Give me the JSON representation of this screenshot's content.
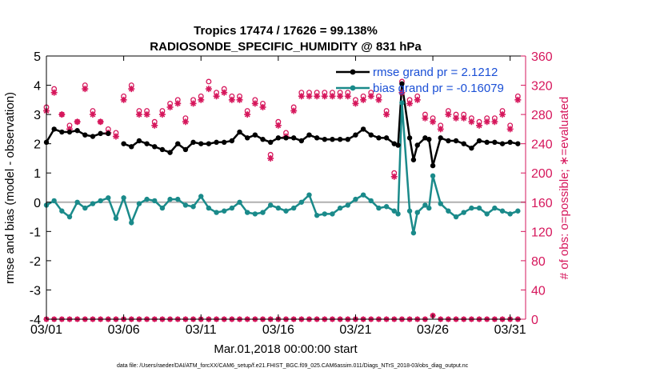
{
  "chart_data": {
    "type": "line",
    "title_line1": "Tropics 17474 / 17626 = 99.138%",
    "title_line2": "RADIOSONDE_SPECIFIC_HUMIDITY @ 831 hPa",
    "xlabel": "Mar.01,2018 00:00:00 start",
    "ylabel_left": "rmse and bias (model - observation)",
    "ylabel_right": "# of obs: o=possible; ∗=evaluated",
    "footer": "data file: /Users/raeder/DAI/ATM_forcXX/CAM6_setup/f.e21.FHIST_BGC.f09_025.CAM6assim.011/Diags_NTrS_2018-03/obs_diag_output.nc",
    "xlim": [
      0,
      62
    ],
    "ylim_left": [
      -4,
      5
    ],
    "ylim_right": [
      0,
      360
    ],
    "x_ticks": [
      {
        "x": 0,
        "label": "03/01"
      },
      {
        "x": 10,
        "label": "03/06"
      },
      {
        "x": 20,
        "label": "03/11"
      },
      {
        "x": 30,
        "label": "03/16"
      },
      {
        "x": 40,
        "label": "03/21"
      },
      {
        "x": 50,
        "label": "03/26"
      },
      {
        "x": 60,
        "label": "03/31"
      }
    ],
    "y_ticks_left": [
      -4,
      -3,
      -2,
      -1,
      0,
      1,
      2,
      3,
      4,
      5
    ],
    "y_ticks_right": [
      0,
      40,
      80,
      120,
      160,
      200,
      240,
      280,
      320,
      360
    ],
    "colors": {
      "rmse": "#000000",
      "bias": "#1a8a8a",
      "obs": "#d6175c",
      "zero_line": "#b0b0b0",
      "legend_text": "#1a4fd6"
    },
    "legend": [
      {
        "series": "rmse",
        "label": "rmse grand pr = 2.1212"
      },
      {
        "series": "bias",
        "label": "bias grand pr = -0.16079"
      }
    ],
    "series": [
      {
        "name": "rmse",
        "x": [
          0,
          1,
          2,
          3,
          4,
          5,
          6,
          7,
          8,
          9,
          10,
          11,
          12,
          13,
          14,
          15,
          16,
          17,
          18,
          19,
          20,
          21,
          22,
          23,
          24,
          25,
          26,
          27,
          28,
          29,
          30,
          31,
          32,
          33,
          34,
          35,
          36,
          37,
          38,
          39,
          40,
          41,
          42,
          43,
          44,
          45,
          45.5,
          46,
          47,
          47.5,
          48,
          49,
          49.5,
          50,
          51,
          52,
          53,
          54,
          55,
          56,
          57,
          58,
          59,
          60,
          61
        ],
        "y": [
          2.05,
          2.5,
          2.4,
          2.4,
          2.45,
          2.3,
          2.25,
          2.35,
          2.35,
          null,
          2.0,
          1.9,
          2.1,
          2.0,
          1.9,
          1.8,
          1.7,
          2.0,
          1.8,
          2.05,
          2.0,
          2.0,
          2.05,
          2.05,
          2.1,
          2.4,
          2.2,
          2.3,
          2.15,
          2.05,
          2.2,
          2.2,
          2.2,
          2.1,
          2.3,
          2.2,
          2.15,
          2.15,
          2.15,
          2.15,
          2.3,
          2.5,
          2.3,
          2.2,
          2.2,
          2.0,
          1.95,
          4.05,
          2.2,
          1.45,
          1.95,
          2.2,
          2.15,
          1.25,
          2.2,
          2.1,
          2.1,
          2.0,
          1.85,
          2.1,
          2.05,
          2.05,
          2.0,
          2.05,
          2.0
        ]
      },
      {
        "name": "bias",
        "x": [
          0,
          1,
          2,
          3,
          4,
          5,
          6,
          7,
          8,
          9,
          10,
          11,
          12,
          13,
          14,
          15,
          16,
          17,
          18,
          19,
          20,
          21,
          22,
          23,
          24,
          25,
          26,
          27,
          28,
          29,
          30,
          31,
          32,
          33,
          34,
          35,
          36,
          37,
          38,
          39,
          40,
          41,
          42,
          43,
          44,
          45,
          45.5,
          46,
          47,
          47.5,
          48,
          49,
          49.5,
          50,
          51,
          52,
          53,
          54,
          55,
          56,
          57,
          58,
          59,
          60,
          61
        ],
        "y": [
          -0.1,
          0.05,
          -0.3,
          -0.5,
          0.0,
          -0.2,
          -0.05,
          0.05,
          0.15,
          -0.55,
          0.15,
          -0.7,
          -0.05,
          0.1,
          0.05,
          -0.2,
          0.1,
          0.1,
          -0.1,
          -0.15,
          0.2,
          -0.2,
          -0.35,
          -0.3,
          -0.2,
          0.0,
          -0.35,
          -0.4,
          -0.35,
          -0.1,
          -0.2,
          -0.3,
          -0.2,
          0.0,
          0.25,
          -0.45,
          -0.4,
          -0.4,
          -0.2,
          -0.1,
          0.1,
          0.25,
          0.05,
          -0.2,
          -0.15,
          -0.3,
          -0.4,
          3.4,
          -0.3,
          -1.05,
          -0.35,
          -0.1,
          -0.2,
          0.9,
          -0.05,
          -0.3,
          -0.5,
          -0.35,
          -0.2,
          -0.2,
          -0.4,
          -0.2,
          -0.3,
          -0.4,
          -0.3
        ]
      },
      {
        "name": "obs_evaluated",
        "x": [
          0,
          1,
          2,
          3,
          4,
          5,
          6,
          7,
          8,
          9,
          10,
          11,
          12,
          13,
          14,
          15,
          16,
          17,
          18,
          19,
          20,
          21,
          22,
          23,
          24,
          25,
          26,
          27,
          28,
          29,
          30,
          31,
          32,
          33,
          34,
          35,
          36,
          37,
          38,
          39,
          40,
          41,
          42,
          43,
          44,
          45,
          46,
          47,
          48,
          49,
          50,
          51,
          52,
          53,
          54,
          55,
          56,
          57,
          58,
          59,
          60,
          61
        ],
        "y": [
          285,
          310,
          280,
          260,
          270,
          315,
          280,
          270,
          255,
          250,
          300,
          315,
          280,
          280,
          265,
          280,
          290,
          295,
          270,
          295,
          300,
          315,
          305,
          310,
          300,
          300,
          280,
          295,
          290,
          220,
          265,
          250,
          285,
          305,
          305,
          305,
          305,
          305,
          305,
          305,
          295,
          300,
          305,
          300,
          280,
          195,
          310,
          295,
          300,
          275,
          270,
          260,
          280,
          275,
          275,
          270,
          265,
          270,
          270,
          280,
          260,
          300
        ]
      },
      {
        "name": "obs_possible",
        "x": [
          0,
          1,
          2,
          3,
          4,
          5,
          6,
          7,
          8,
          9,
          10,
          11,
          12,
          13,
          14,
          15,
          16,
          17,
          18,
          19,
          20,
          21,
          22,
          23,
          24,
          25,
          26,
          27,
          28,
          29,
          30,
          31,
          32,
          33,
          34,
          35,
          36,
          37,
          38,
          39,
          40,
          41,
          42,
          43,
          44,
          45,
          46,
          47,
          48,
          49,
          50,
          51,
          52,
          53,
          54,
          55,
          56,
          57,
          58,
          59,
          60,
          61
        ],
        "y": [
          290,
          315,
          280,
          265,
          270,
          320,
          285,
          270,
          260,
          255,
          305,
          320,
          285,
          285,
          270,
          285,
          295,
          300,
          275,
          300,
          305,
          325,
          310,
          315,
          305,
          305,
          285,
          300,
          295,
          225,
          270,
          255,
          290,
          310,
          310,
          310,
          310,
          310,
          310,
          310,
          300,
          305,
          310,
          305,
          285,
          200,
          325,
          300,
          305,
          280,
          275,
          265,
          285,
          280,
          280,
          275,
          270,
          275,
          275,
          285,
          265,
          305
        ]
      },
      {
        "name": "obs_bottom",
        "x": [
          0,
          1,
          2,
          3,
          4,
          5,
          6,
          7,
          8,
          9,
          10,
          11,
          12,
          13,
          14,
          15,
          16,
          17,
          18,
          19,
          20,
          21,
          22,
          23,
          24,
          25,
          26,
          27,
          28,
          29,
          30,
          31,
          32,
          33,
          34,
          35,
          36,
          37,
          38,
          39,
          40,
          41,
          42,
          43,
          44,
          45,
          46,
          47,
          48,
          49,
          50,
          51,
          52,
          53,
          54,
          55,
          56,
          57,
          58,
          59,
          60,
          61
        ],
        "y": [
          0,
          0,
          0,
          0,
          0,
          0,
          0,
          0,
          0,
          0,
          0,
          0,
          0,
          0,
          0,
          0,
          0,
          0,
          0,
          0,
          0,
          0,
          0,
          0,
          0,
          0,
          0,
          0,
          0,
          0,
          0,
          0,
          0,
          0,
          0,
          0,
          0,
          0,
          0,
          0,
          0,
          0,
          0,
          0,
          0,
          0,
          0,
          0,
          0,
          0,
          5,
          0,
          0,
          0,
          0,
          0,
          0,
          0,
          0,
          0,
          0,
          0
        ]
      }
    ]
  }
}
